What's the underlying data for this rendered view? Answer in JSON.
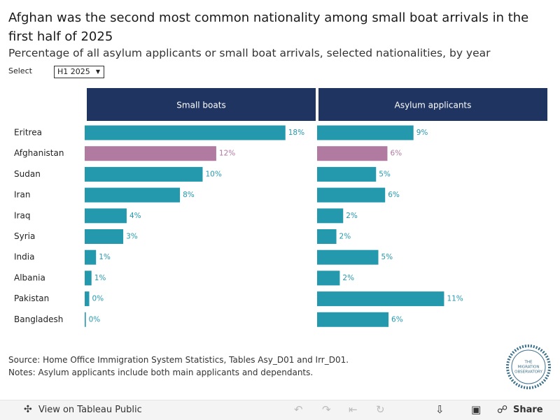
{
  "title": "Afghan was the second most common nationality among small boat arrivals in the first half of 2025",
  "subtitle": "Percentage of all asylum applicants or small boat arrivals, selected nationalities, by year",
  "filter": {
    "label": "Select",
    "selected": "H1 2025"
  },
  "chart_data": {
    "type": "bar",
    "categories": [
      "Eritrea",
      "Afghanistan",
      "Sudan",
      "Iran",
      "Iraq",
      "Syria",
      "India",
      "Albania",
      "Pakistan",
      "Bangladesh"
    ],
    "xlim": [
      0,
      20
    ],
    "series": [
      {
        "name": "Small boats",
        "colors": [
          "#2499ae",
          "#b07aa1",
          "#2499ae",
          "#2499ae",
          "#2499ae",
          "#2499ae",
          "#2499ae",
          "#2499ae",
          "#2499ae",
          "#2499ae"
        ],
        "values": [
          17.7,
          11.6,
          10.4,
          8.4,
          3.7,
          3.4,
          1.0,
          0.6,
          0.4,
          0.1
        ],
        "value_labels": [
          "18%",
          "12%",
          "10%",
          "8%",
          "4%",
          "3%",
          "1%",
          "1%",
          "0%",
          "0%"
        ]
      },
      {
        "name": "Asylum applicants",
        "colors": [
          "#2499ae",
          "#b07aa1",
          "#2499ae",
          "#2499ae",
          "#2499ae",
          "#2499ae",
          "#2499ae",
          "#2499ae",
          "#2499ae",
          "#2499ae"
        ],
        "values": [
          8.5,
          6.2,
          5.2,
          6.0,
          2.3,
          1.7,
          5.4,
          2.0,
          11.2,
          6.3
        ],
        "value_labels": [
          "9%",
          "6%",
          "5%",
          "6%",
          "2%",
          "2%",
          "5%",
          "2%",
          "11%",
          "6%"
        ]
      }
    ]
  },
  "notes": [
    "Source: Home Office Immigration System Statistics, Tables Asy_D01 and Irr_D01.",
    "Notes: Asylum applicants include both main applicants and dependants."
  ],
  "logo": [
    "THE",
    "MIGRATION",
    "OBSERVATORY"
  ],
  "toolbar": {
    "view": "View on Tableau Public",
    "share": "Share"
  }
}
